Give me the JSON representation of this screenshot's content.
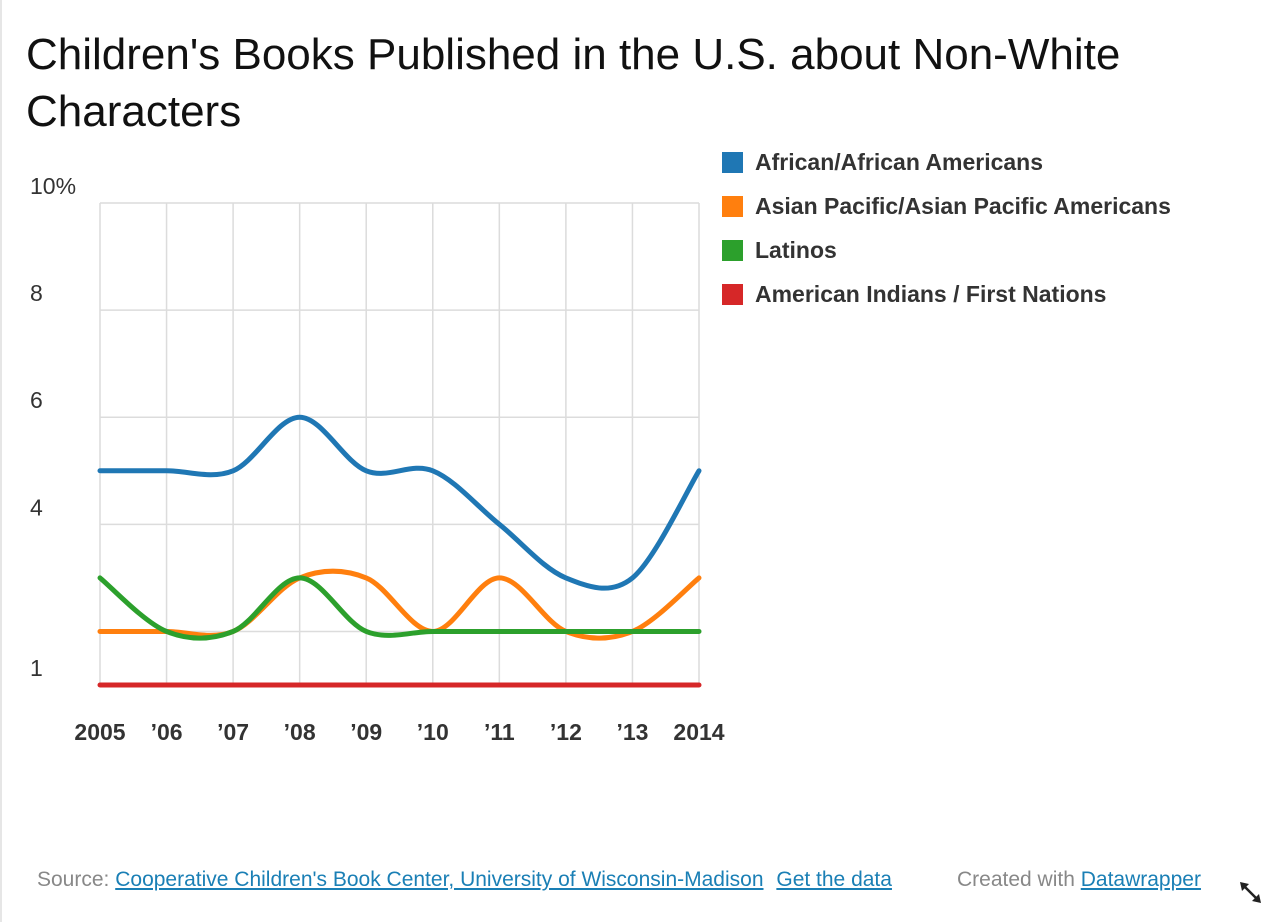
{
  "title": "Children's Books Published in the U.S. about Non-White Characters",
  "chart_data": {
    "type": "line",
    "title": "Children's Books Published in the U.S. about Non-White Characters",
    "xlabel": "",
    "ylabel": "",
    "x_tick_labels": [
      "2005",
      "’06",
      "’07",
      "’08",
      "’09",
      "’10",
      "’11",
      "’12",
      "’13",
      "2014"
    ],
    "y_tick_labels": [
      {
        "value": 1,
        "label": "1"
      },
      {
        "value": 4,
        "label": "4"
      },
      {
        "value": 6,
        "label": "6"
      },
      {
        "value": 8,
        "label": "8"
      },
      {
        "value": 10,
        "label": "10%"
      }
    ],
    "ylim": [
      1,
      10
    ],
    "grid": true,
    "legend_position": "right",
    "series": [
      {
        "name": "African/African Americans",
        "color": "#1f77b4",
        "values": [
          5,
          5,
          5,
          6,
          5,
          5,
          4,
          3,
          3,
          5
        ]
      },
      {
        "name": "Asian Pacific/Asian Pacific Americans",
        "color": "#ff7f0e",
        "values": [
          2,
          2,
          2,
          3,
          3,
          2,
          3,
          2,
          2,
          3
        ]
      },
      {
        "name": "Latinos",
        "color": "#2ca02c",
        "values": [
          3,
          2,
          2,
          3,
          2,
          2,
          2,
          2,
          2,
          2
        ]
      },
      {
        "name": "American Indians / First Nations",
        "color": "#d62728",
        "values": [
          1,
          1,
          1,
          1,
          1,
          1,
          1,
          1,
          1,
          1
        ]
      }
    ]
  },
  "footer": {
    "source_prefix": "Source:",
    "source_link": "Cooperative Children's Book Center, University of Wisconsin-Madison",
    "get_data": "Get the data",
    "created_with": "Created with",
    "datawrapper": "Datawrapper"
  },
  "icons": {
    "resize": "resize-arrow-icon"
  }
}
